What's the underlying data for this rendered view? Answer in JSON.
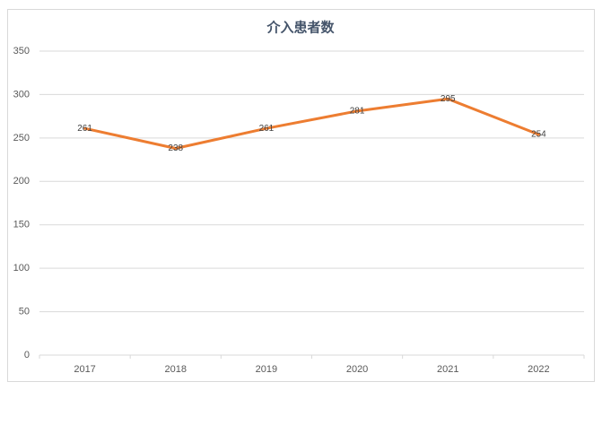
{
  "chart_data": {
    "type": "line",
    "title": "介入患者数",
    "categories": [
      "2017",
      "2018",
      "2019",
      "2020",
      "2021",
      "2022"
    ],
    "values": [
      261,
      238,
      261,
      281,
      295,
      254
    ],
    "color": "#ed7d31",
    "ylim": [
      0,
      350
    ],
    "yticks": [
      0,
      50,
      100,
      150,
      200,
      250,
      300,
      350
    ],
    "grid": true
  }
}
